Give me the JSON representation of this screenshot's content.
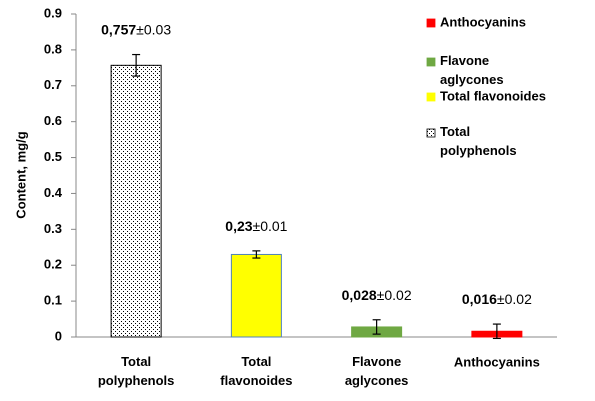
{
  "chart_data": {
    "type": "bar",
    "y_label": "Content,  mg/g",
    "categories": [
      "Total polyphenols",
      "Total flavonoides",
      "Flavone aglycones",
      "Anthocyanins"
    ],
    "values": [
      0.757,
      0.23,
      0.028,
      0.016
    ],
    "value_labels": [
      "0,757",
      "0,23",
      "0,028",
      "0,016"
    ],
    "errors": [
      0.03,
      0.01,
      0.02,
      0.02
    ],
    "error_labels": [
      "±0.03",
      "±0.01",
      "±0.02",
      "±0.02"
    ],
    "colors": [
      "dots",
      "#ffff00",
      "#6fa843",
      "#ff0000"
    ],
    "legend": [
      {
        "name": "Anthocyanins",
        "color": "#ff0000"
      },
      {
        "name": "Flavone aglycones",
        "color": "#6fa843"
      },
      {
        "name": "Total flavonoides",
        "color": "#ffff00"
      },
      {
        "name": "Total polyphenols",
        "color": "dots"
      }
    ],
    "ylim": [
      0,
      0.9
    ],
    "yticks": [
      0,
      0.1,
      0.2,
      0.3,
      0.4,
      0.5,
      0.6,
      0.7,
      0.8,
      0.9
    ],
    "grid": false
  }
}
